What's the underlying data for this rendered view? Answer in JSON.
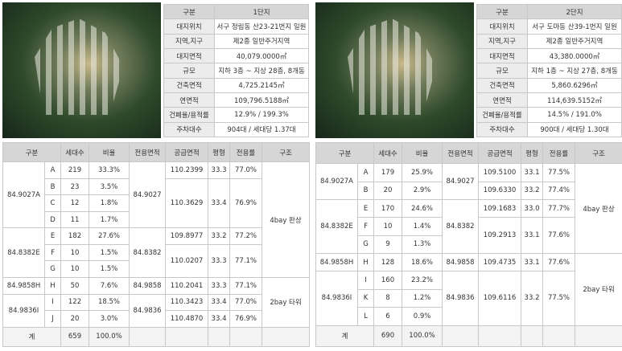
{
  "left": {
    "info": {
      "header": [
        "구분",
        "1단지"
      ],
      "rows": [
        [
          "대지위치",
          "서구 정림동 산23-21번지 일원"
        ],
        [
          "지역,지구",
          "제2종 일반주거지역"
        ],
        [
          "대지면적",
          "40,079.0000㎡"
        ],
        [
          "규모",
          "지하 3층 ~ 지상 28층, 8개동"
        ],
        [
          "건축면적",
          "4,725.2145㎡"
        ],
        [
          "연면적",
          "109,796.5188㎡"
        ],
        [
          "건폐율/용적률",
          "12.9% / 199.3%"
        ],
        [
          "주차대수",
          "904대 / 세대당 1.37대"
        ]
      ]
    },
    "units": {
      "header": [
        "구분",
        "세대수",
        "비율",
        "전용면적",
        "공급면적",
        "평형",
        "전용률",
        "구조"
      ],
      "rows": [
        [
          "84.9027A",
          "A",
          "219",
          "33.3%",
          "84.9027",
          "110.2399",
          "33.3",
          "77.0%",
          "4bay 판상"
        ],
        [
          "B",
          "23",
          "3.5%",
          "110.3629",
          "33.4",
          "76.9%"
        ],
        [
          "C",
          "12",
          "1.8%"
        ],
        [
          "D",
          "11",
          "1.7%"
        ],
        [
          "84.8382E",
          "E",
          "182",
          "27.6%",
          "84.8382",
          "109.8977",
          "33.2",
          "77.2%"
        ],
        [
          "F",
          "10",
          "1.5%",
          "110.0207",
          "33.3",
          "77.1%"
        ],
        [
          "G",
          "10",
          "1.5%"
        ],
        [
          "84.9858H",
          "H",
          "50",
          "7.6%",
          "84.9858",
          "110.2041",
          "33.3",
          "77.1%",
          "2bay 타워"
        ],
        [
          "84.9836I",
          "I",
          "122",
          "18.5%",
          "84.9836",
          "110.3423",
          "33.4",
          "77.0%"
        ],
        [
          "J",
          "20",
          "3.0%",
          "110.4870",
          "33.4",
          "76.9%"
        ]
      ],
      "total": [
        "계",
        "659",
        "100.0%"
      ]
    }
  },
  "right": {
    "info": {
      "header": [
        "구분",
        "2단지"
      ],
      "rows": [
        [
          "대지위치",
          "서구 도마동 산39-1번지 일원"
        ],
        [
          "지역,지구",
          "제2종 일반주거지역"
        ],
        [
          "대지면적",
          "43,380.0000㎡"
        ],
        [
          "규모",
          "지하 1층 ~ 지상 27층, 8개동"
        ],
        [
          "건축면적",
          "5,860.6296㎡"
        ],
        [
          "연면적",
          "114,639.5152㎡"
        ],
        [
          "건폐율/용적률",
          "14.5% / 191.0%"
        ],
        [
          "주차대수",
          "900대 / 세대당 1.30대"
        ]
      ]
    },
    "units": {
      "header": [
        "구분",
        "세대수",
        "비율",
        "전용면적",
        "공급면적",
        "평형",
        "전용률",
        "구조"
      ],
      "rows": [
        [
          "84.9027A",
          "A",
          "179",
          "25.9%",
          "84.9027",
          "109.5100",
          "33.1",
          "77.5%",
          "4bay 판상"
        ],
        [
          "B",
          "20",
          "2.9%",
          "109.6330",
          "33.2",
          "77.4%"
        ],
        [
          "84.8382E",
          "E",
          "170",
          "24.6%",
          "84.8382",
          "109.1683",
          "33.0",
          "77.7%"
        ],
        [
          "F",
          "10",
          "1.4%",
          "109.2913",
          "33.1",
          "77.6%"
        ],
        [
          "G",
          "9",
          "1.3%"
        ],
        [
          "84.9858H",
          "H",
          "128",
          "18.6%",
          "84.9858",
          "109.4735",
          "33.1",
          "77.6%",
          "2bay 타워"
        ],
        [
          "84.9836I",
          "I",
          "160",
          "23.2%",
          "84.9836",
          "109.6116",
          "33.2",
          "77.5%"
        ],
        [
          "K",
          "8",
          "1.2%"
        ],
        [
          "L",
          "6",
          "0.9%"
        ]
      ],
      "total": [
        "계",
        "690",
        "100.0%"
      ]
    }
  }
}
